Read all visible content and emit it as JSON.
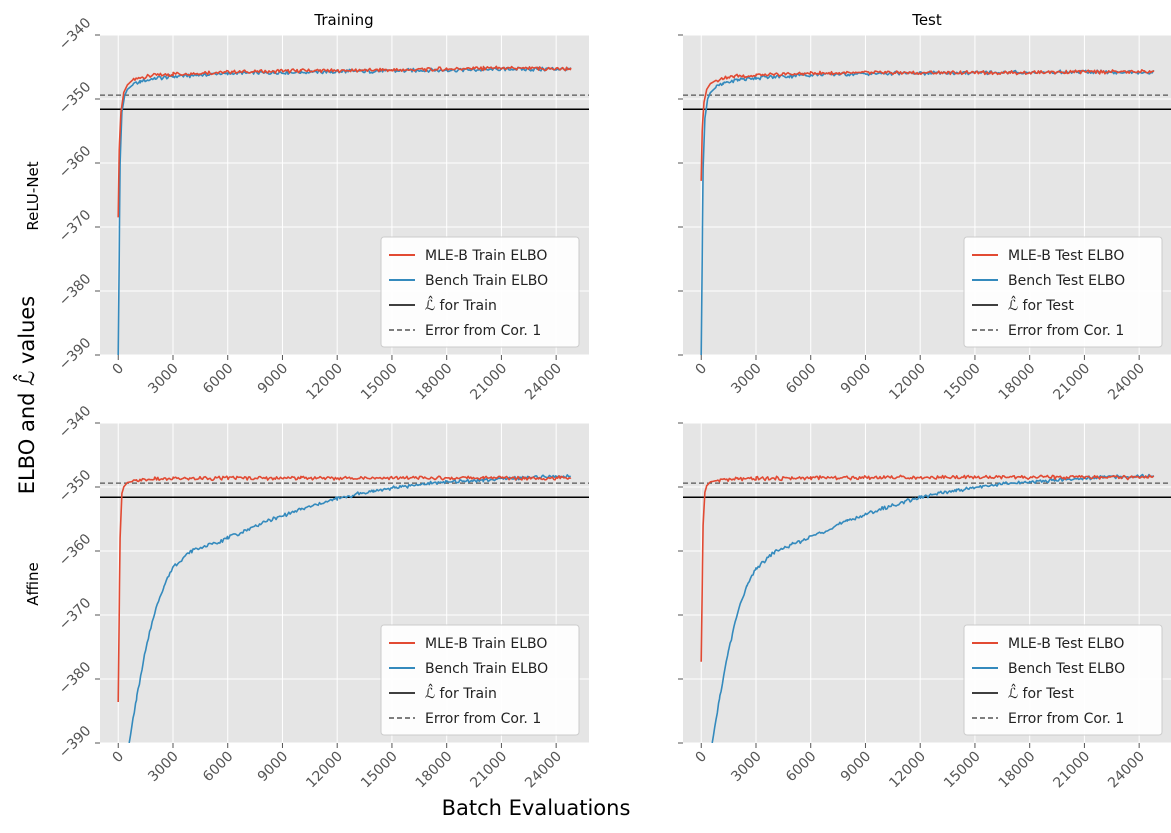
{
  "figure": {
    "ylabel": "ELBO and ℒ̂ values",
    "xlabel": "Batch Evaluations",
    "row_labels": [
      "ReLU-Net",
      "Affine"
    ],
    "col_titles": [
      "Training",
      "Test"
    ]
  },
  "colors": {
    "mle": "#E24A33",
    "bench": "#348ABD",
    "lhat": "#000000",
    "error": "#555555",
    "panel_bg": "#E5E5E5",
    "grid": "#FFFFFF"
  },
  "chart_data": [
    {
      "type": "line",
      "title": "Training",
      "row_label": "ReLU-Net",
      "xlim": [
        -1000,
        25800
      ],
      "ylim": [
        -390,
        -340
      ],
      "xticks": [
        0,
        3000,
        6000,
        9000,
        12000,
        15000,
        18000,
        21000,
        24000
      ],
      "yticks": [
        -390,
        -380,
        -370,
        -360,
        -350,
        -340
      ],
      "grid": true,
      "legend_position": "lower right",
      "series": [
        {
          "name": "MLE-B Train ELBO",
          "color": "#E24A33",
          "x": [
            0,
            50,
            150,
            300,
            500,
            800,
            1200,
            1800,
            3000,
            6000,
            10000,
            15000,
            20000,
            24800
          ],
          "y": [
            -368.5,
            -358,
            -352,
            -349,
            -347.8,
            -347,
            -346.7,
            -346.4,
            -346.1,
            -345.8,
            -345.6,
            -345.5,
            -345.2,
            -345.3
          ]
        },
        {
          "name": "Bench Train ELBO",
          "color": "#348ABD",
          "x": [
            0,
            50,
            100,
            200,
            350,
            500,
            800,
            1200,
            2000,
            3000,
            6000,
            10000,
            15000,
            20000,
            24800
          ],
          "y": [
            -390,
            -375,
            -360,
            -352,
            -349.5,
            -348.5,
            -347.8,
            -347.3,
            -346.8,
            -346.5,
            -346.0,
            -345.8,
            -345.6,
            -345.4,
            -345.3
          ]
        },
        {
          "name": "ℒ̂  for Train",
          "color": "#000000",
          "style": "solid",
          "y": -351.6
        },
        {
          "name": "Error from Cor. 1",
          "color": "#555555",
          "style": "dashed",
          "y": -349.4
        }
      ]
    },
    {
      "type": "line",
      "title": "Test",
      "row_label": "ReLU-Net",
      "xlim": [
        -1000,
        25800
      ],
      "ylim": [
        -390,
        -340
      ],
      "xticks": [
        0,
        3000,
        6000,
        9000,
        12000,
        15000,
        18000,
        21000,
        24000
      ],
      "yticks": [
        -390,
        -380,
        -370,
        -360,
        -350,
        -340
      ],
      "grid": true,
      "legend_position": "lower right",
      "series": [
        {
          "name": "MLE-B Test ELBO",
          "color": "#E24A33",
          "x": [
            0,
            50,
            150,
            300,
            500,
            800,
            1200,
            1800,
            3000,
            6000,
            10000,
            15000,
            20000,
            24800
          ],
          "y": [
            -362.8,
            -355,
            -350.5,
            -348.5,
            -347.6,
            -347.1,
            -346.8,
            -346.5,
            -346.3,
            -346.0,
            -345.9,
            -345.9,
            -345.8,
            -345.7
          ]
        },
        {
          "name": "Bench Test ELBO",
          "color": "#348ABD",
          "x": [
            0,
            50,
            100,
            200,
            350,
            500,
            800,
            1200,
            2000,
            3000,
            6000,
            10000,
            15000,
            20000,
            24800
          ],
          "y": [
            -390,
            -375,
            -361,
            -353,
            -350,
            -349,
            -348.2,
            -347.6,
            -347.0,
            -346.7,
            -346.2,
            -346.0,
            -345.9,
            -345.8,
            -345.8
          ]
        },
        {
          "name": "ℒ̂  for Test",
          "color": "#000000",
          "style": "solid",
          "y": -351.6
        },
        {
          "name": "Error from Cor. 1",
          "color": "#555555",
          "style": "dashed",
          "y": -349.4
        }
      ]
    },
    {
      "type": "line",
      "title": "",
      "row_label": "Affine",
      "xlim": [
        -1000,
        25800
      ],
      "ylim": [
        -390,
        -340
      ],
      "xticks": [
        0,
        3000,
        6000,
        9000,
        12000,
        15000,
        18000,
        21000,
        24000
      ],
      "yticks": [
        -390,
        -380,
        -370,
        -360,
        -350,
        -340
      ],
      "grid": true,
      "legend_position": "lower right",
      "series": [
        {
          "name": "MLE-B Train ELBO",
          "color": "#E24A33",
          "x": [
            0,
            50,
            100,
            200,
            300,
            500,
            1000,
            2000,
            3000,
            6000,
            10000,
            15000,
            20000,
            24800
          ],
          "y": [
            -383.6,
            -370,
            -358,
            -351,
            -350,
            -349.3,
            -349.0,
            -348.8,
            -348.7,
            -348.6,
            -348.6,
            -348.6,
            -348.6,
            -348.6
          ]
        },
        {
          "name": "Bench Train ELBO",
          "color": "#348ABD",
          "x": [
            600,
            1000,
            1500,
            2000,
            2500,
            3000,
            4000,
            5000,
            6000,
            8000,
            10000,
            12000,
            14000,
            16000,
            18000,
            20000,
            22000,
            24800
          ],
          "y": [
            -390,
            -383,
            -375.5,
            -369.5,
            -365.5,
            -362.5,
            -360.0,
            -359.0,
            -358.0,
            -355.5,
            -353.5,
            -351.8,
            -350.6,
            -349.8,
            -349.2,
            -348.9,
            -348.6,
            -348.3
          ]
        },
        {
          "name": "ℒ̂  for Train",
          "color": "#000000",
          "style": "solid",
          "y": -351.6
        },
        {
          "name": "Error from Cor. 1",
          "color": "#555555",
          "style": "dashed",
          "y": -349.4
        }
      ]
    },
    {
      "type": "line",
      "title": "",
      "row_label": "Affine",
      "xlim": [
        -1000,
        25800
      ],
      "ylim": [
        -390,
        -340
      ],
      "xticks": [
        0,
        3000,
        6000,
        9000,
        12000,
        15000,
        18000,
        21000,
        24000
      ],
      "yticks": [
        -390,
        -380,
        -370,
        -360,
        -350,
        -340
      ],
      "grid": true,
      "legend_position": "lower right",
      "series": [
        {
          "name": "MLE-B Test ELBO",
          "color": "#E24A33",
          "x": [
            0,
            50,
            100,
            200,
            300,
            500,
            1000,
            2000,
            3000,
            6000,
            10000,
            15000,
            20000,
            24800
          ],
          "y": [
            -377.3,
            -366,
            -356,
            -350.8,
            -349.8,
            -349.2,
            -348.9,
            -348.8,
            -348.7,
            -348.6,
            -348.5,
            -348.5,
            -348.5,
            -348.5
          ]
        },
        {
          "name": "Bench Test ELBO",
          "color": "#348ABD",
          "x": [
            600,
            1000,
            1500,
            2000,
            2500,
            3000,
            4000,
            5000,
            6000,
            8000,
            10000,
            12000,
            14000,
            16000,
            18000,
            20000,
            22000,
            24800
          ],
          "y": [
            -390,
            -383,
            -375.5,
            -369.5,
            -365.5,
            -362.8,
            -360.2,
            -359.0,
            -357.8,
            -355.3,
            -353.3,
            -351.6,
            -350.5,
            -349.7,
            -349.2,
            -348.8,
            -348.5,
            -348.2
          ]
        },
        {
          "name": "ℒ̂  for Test",
          "color": "#000000",
          "style": "solid",
          "y": -351.6
        },
        {
          "name": "Error from Cor. 1",
          "color": "#555555",
          "style": "dashed",
          "y": -349.4
        }
      ]
    }
  ]
}
